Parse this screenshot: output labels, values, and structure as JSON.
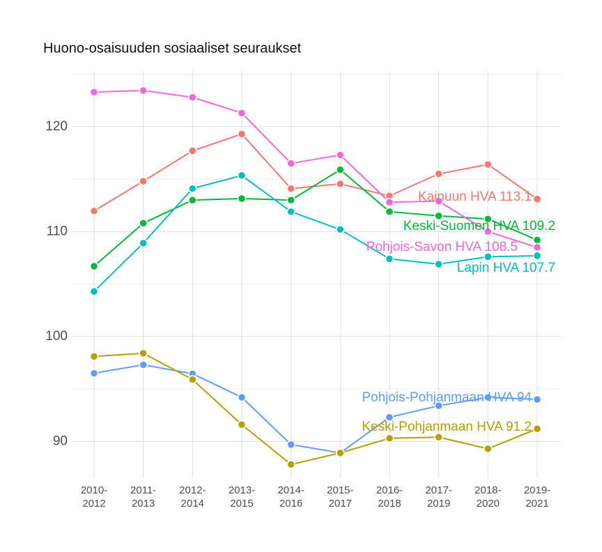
{
  "chart_data": {
    "type": "line",
    "title": "Huono-osaisuuden sosiaaliset seuraukset",
    "categories": [
      "2010-2012",
      "2011-2013",
      "2012-2014",
      "2013-2015",
      "2014-2016",
      "2015-2017",
      "2016-2018",
      "2017-2019",
      "2018-2020",
      "2019-2021"
    ],
    "ylim": [
      86.5,
      125.3
    ],
    "yticks": [
      90,
      100,
      110,
      120
    ],
    "minor_yticks": [
      95,
      105,
      115,
      125
    ],
    "grid": true,
    "series": [
      {
        "name": "Kainuun HVA",
        "color": "#F8766D",
        "values": [
          111.96,
          114.8,
          117.7,
          119.3,
          114.1,
          114.55,
          113.4,
          115.5,
          116.4,
          113.1
        ],
        "value_labels": [
          null,
          null,
          null,
          null,
          null,
          null,
          null,
          null,
          null,
          "Kainuun HVA 113.1"
        ]
      },
      {
        "name": "Keski-Suomen HVA",
        "color": "#00BA38",
        "values": [
          106.7,
          110.8,
          113.0,
          113.15,
          113.0,
          115.9,
          111.9,
          111.5,
          111.2,
          109.2
        ],
        "value_labels": [
          null,
          null,
          null,
          null,
          null,
          null,
          null,
          null,
          null,
          "Keski-Suomen HVA 109.2"
        ]
      },
      {
        "name": "Pohjois-Savon HVA",
        "color": "#F564E3",
        "values": [
          123.3,
          123.45,
          122.8,
          121.3,
          116.5,
          117.3,
          112.8,
          112.9,
          110.0,
          108.5
        ],
        "value_labels": [
          null,
          null,
          null,
          null,
          null,
          null,
          null,
          null,
          null,
          "Pohjois-Savon HVA 108.5"
        ]
      },
      {
        "name": "Lapin HVA",
        "color": "#00BFC4",
        "values": [
          104.3,
          108.9,
          114.1,
          115.35,
          111.9,
          110.2,
          107.4,
          106.9,
          107.6,
          107.7
        ],
        "value_labels": [
          null,
          null,
          null,
          null,
          null,
          null,
          null,
          null,
          null,
          "Lapin HVA 107.7"
        ]
      },
      {
        "name": "Pohjois-Pohjanmaan HVA",
        "color": "#619CFF",
        "values": [
          96.5,
          97.3,
          96.45,
          94.2,
          89.7,
          88.9,
          92.3,
          93.4,
          94.2,
          94.0
        ],
        "value_labels": [
          null,
          null,
          null,
          null,
          null,
          null,
          null,
          null,
          null,
          "Pohjois-Pohjanmaan HVA 94"
        ]
      },
      {
        "name": "Keski-Pohjanmaan HVA",
        "color": "#B79F00",
        "values": [
          98.1,
          98.4,
          95.9,
          91.6,
          87.8,
          88.9,
          90.3,
          90.4,
          89.3,
          91.2
        ],
        "value_labels": [
          null,
          null,
          null,
          null,
          null,
          null,
          null,
          null,
          null,
          "Keski-Pohjanmaan HVA 91.2"
        ]
      }
    ]
  }
}
